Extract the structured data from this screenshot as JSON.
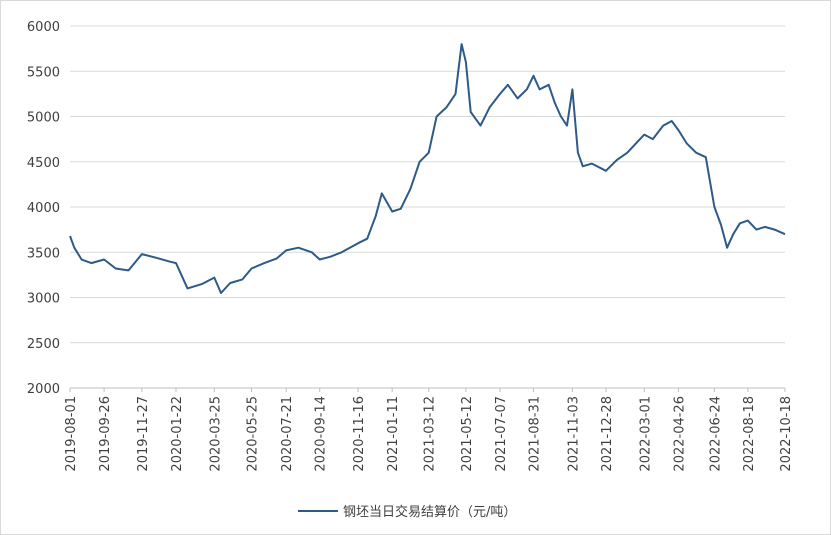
{
  "chart_data": {
    "type": "line",
    "title": "",
    "xlabel": "",
    "ylabel": "",
    "ylim": [
      2000,
      6000
    ],
    "y_ticks": [
      2000,
      2500,
      3000,
      3500,
      4000,
      4500,
      5000,
      5500,
      6000
    ],
    "x_tick_labels": [
      "2019-08-01",
      "2019-09-26",
      "2019-11-27",
      "2020-01-22",
      "2020-03-25",
      "2020-05-25",
      "2020-07-21",
      "2020-09-14",
      "2020-11-16",
      "2021-01-11",
      "2021-03-12",
      "2021-05-12",
      "2021-07-07",
      "2021-08-31",
      "2021-11-03",
      "2021-12-28",
      "2022-03-01",
      "2022-04-26",
      "2022-06-24",
      "2022-08-18",
      "2022-10-18"
    ],
    "grid": "horizontal",
    "legend_position": "bottom",
    "line_color": "#2e5a87",
    "series": [
      {
        "name": "钢坯当日交易结算价（元/吨）",
        "x": [
          "2019-08-01",
          "2019-08-08",
          "2019-08-20",
          "2019-09-05",
          "2019-09-26",
          "2019-10-15",
          "2019-11-05",
          "2019-11-27",
          "2019-12-20",
          "2020-01-10",
          "2020-01-22",
          "2020-02-10",
          "2020-03-05",
          "2020-03-25",
          "2020-04-05",
          "2020-04-20",
          "2020-05-10",
          "2020-05-25",
          "2020-06-15",
          "2020-07-05",
          "2020-07-21",
          "2020-08-10",
          "2020-09-01",
          "2020-09-14",
          "2020-10-01",
          "2020-10-20",
          "2020-11-16",
          "2020-12-01",
          "2020-12-15",
          "2020-12-25",
          "2021-01-11",
          "2021-01-25",
          "2021-02-10",
          "2021-02-25",
          "2021-03-12",
          "2021-03-25",
          "2021-04-10",
          "2021-04-25",
          "2021-05-05",
          "2021-05-12",
          "2021-05-20",
          "2021-06-05",
          "2021-06-20",
          "2021-07-07",
          "2021-07-20",
          "2021-08-05",
          "2021-08-20",
          "2021-08-31",
          "2021-09-10",
          "2021-09-25",
          "2021-10-05",
          "2021-10-15",
          "2021-10-25",
          "2021-11-03",
          "2021-11-12",
          "2021-11-20",
          "2021-12-05",
          "2021-12-28",
          "2022-01-15",
          "2022-02-01",
          "2022-02-15",
          "2022-03-01",
          "2022-03-15",
          "2022-04-01",
          "2022-04-15",
          "2022-04-26",
          "2022-05-10",
          "2022-05-25",
          "2022-06-10",
          "2022-06-24",
          "2022-07-05",
          "2022-07-15",
          "2022-07-25",
          "2022-08-05",
          "2022-08-18",
          "2022-09-01",
          "2022-09-15",
          "2022-10-01",
          "2022-10-18"
        ],
        "values": [
          3680,
          3550,
          3420,
          3380,
          3420,
          3320,
          3300,
          3480,
          3440,
          3400,
          3380,
          3100,
          3150,
          3220,
          3050,
          3160,
          3200,
          3320,
          3380,
          3430,
          3520,
          3550,
          3500,
          3420,
          3450,
          3500,
          3600,
          3650,
          3900,
          4150,
          3950,
          3980,
          4200,
          4500,
          4600,
          5000,
          5100,
          5250,
          5800,
          5600,
          5050,
          4900,
          5100,
          5250,
          5350,
          5200,
          5300,
          5450,
          5300,
          5350,
          5150,
          5000,
          4900,
          5300,
          4600,
          4450,
          4480,
          4400,
          4520,
          4600,
          4700,
          4800,
          4750,
          4900,
          4950,
          4850,
          4700,
          4600,
          4550,
          4000,
          3800,
          3550,
          3700,
          3820,
          3850,
          3750,
          3780,
          3750,
          3700
        ]
      }
    ]
  }
}
